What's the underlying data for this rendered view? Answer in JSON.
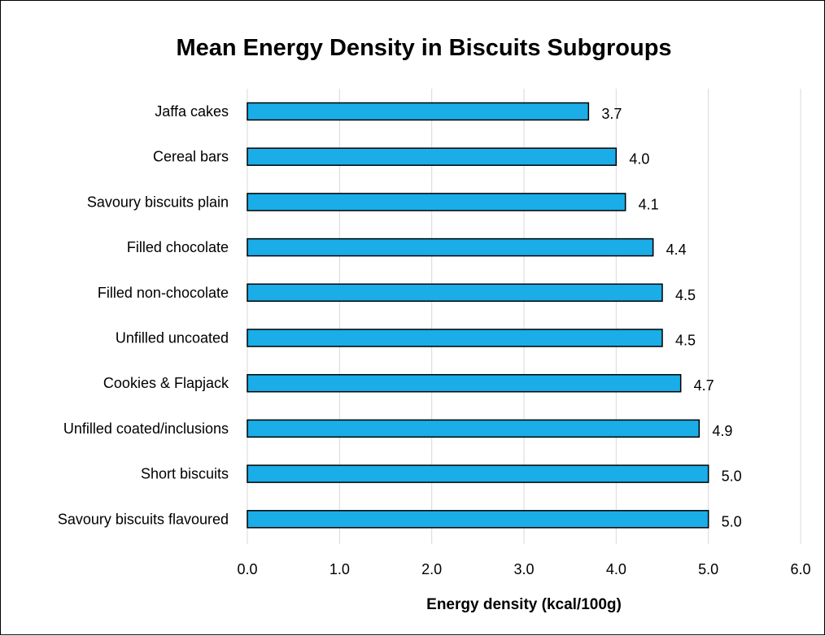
{
  "chart_data": {
    "type": "bar",
    "orientation": "horizontal",
    "title": "Mean Energy Density in Biscuits Subgroups",
    "xlabel": "Energy density (kcal/100g)",
    "ylabel": "",
    "categories": [
      "Jaffa cakes",
      "Cereal bars",
      "Savoury biscuits plain",
      "Filled chocolate",
      "Filled non-chocolate",
      "Unfilled uncoated",
      "Cookies & Flapjack",
      "Unfilled coated/inclusions",
      "Short biscuits",
      "Savoury biscuits flavoured"
    ],
    "values": [
      3.7,
      4.0,
      4.1,
      4.4,
      4.5,
      4.5,
      4.7,
      4.9,
      5.0,
      5.0
    ],
    "data_labels": [
      "3.7",
      "4.0",
      "4.1",
      "4.4",
      "4.5",
      "4.5",
      "4.7",
      "4.9",
      "5.0",
      "5.0"
    ],
    "xlim": [
      0,
      6
    ],
    "ticks": [
      "0.0",
      "1.0",
      "2.0",
      "3.0",
      "4.0",
      "5.0",
      "6.0"
    ],
    "grid": true,
    "legend": "none",
    "bar_color": "#1AADE8",
    "bar_outline_color": "#000000",
    "grid_color": "#D9D9D9"
  }
}
